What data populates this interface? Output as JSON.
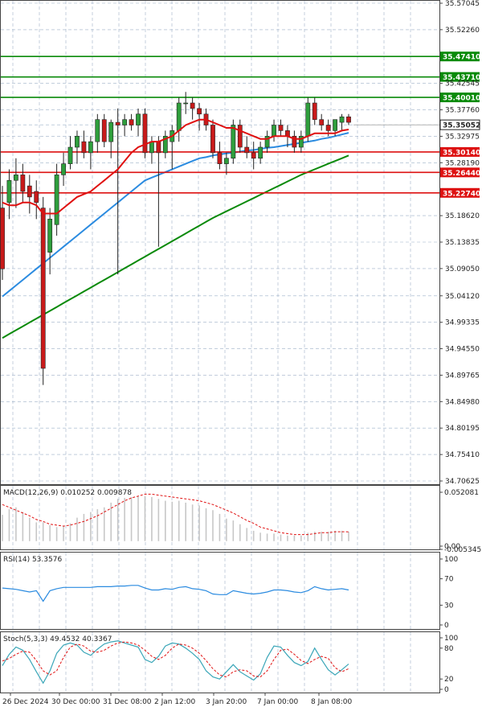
{
  "chart_data": {
    "type": "candlestick",
    "price_axis": {
      "ticks": [
        "35.57045",
        "35.52260",
        "35.47410",
        "35.43710",
        "35.42545",
        "35.40010",
        "35.37760",
        "35.35052",
        "35.32975",
        "35.30140",
        "35.28190",
        "35.26440",
        "35.22740",
        "35.18620",
        "35.13835",
        "35.09050",
        "35.04120",
        "34.99335",
        "34.94550",
        "34.89765",
        "34.84980",
        "34.80195",
        "34.75410",
        "34.70625"
      ]
    },
    "current_price": "35.35052",
    "levels": [
      {
        "label": "35.47410",
        "value": 35.4741,
        "color": "#0a8a0a"
      },
      {
        "label": "35.43710",
        "value": 35.4371,
        "color": "#0a8a0a"
      },
      {
        "label": "35.40010",
        "value": 35.4001,
        "color": "#0a8a0a"
      },
      {
        "label": "35.30140",
        "value": 35.3014,
        "color": "#dd1111"
      },
      {
        "label": "35.26440",
        "value": 35.2644,
        "color": "#dd1111"
      },
      {
        "label": "35.22740",
        "value": 35.2274,
        "color": "#dd1111"
      }
    ],
    "x_labels": [
      "26 Dec 2024",
      "30 Dec 00:00",
      "31 Dec 08:00",
      "2 Jan 12:00",
      "3 Jan 20:00",
      "7 Jan 00:00",
      "8 Jan 08:00"
    ],
    "candles": [
      {
        "o": 35.2,
        "h": 35.24,
        "l": 35.07,
        "c": 35.09
      },
      {
        "o": 35.21,
        "h": 35.27,
        "l": 35.18,
        "c": 35.25
      },
      {
        "o": 35.25,
        "h": 35.29,
        "l": 35.2,
        "c": 35.26
      },
      {
        "o": 35.26,
        "h": 35.28,
        "l": 35.21,
        "c": 35.23
      },
      {
        "o": 35.24,
        "h": 35.26,
        "l": 35.19,
        "c": 35.22
      },
      {
        "o": 35.23,
        "h": 35.25,
        "l": 35.18,
        "c": 35.21
      },
      {
        "o": 35.2,
        "h": 35.22,
        "l": 34.88,
        "c": 34.91
      },
      {
        "o": 35.12,
        "h": 35.2,
        "l": 35.08,
        "c": 35.18
      },
      {
        "o": 35.17,
        "h": 35.28,
        "l": 35.15,
        "c": 35.26
      },
      {
        "o": 35.26,
        "h": 35.3,
        "l": 35.24,
        "c": 35.28
      },
      {
        "o": 35.28,
        "h": 35.33,
        "l": 35.27,
        "c": 35.31
      },
      {
        "o": 35.31,
        "h": 35.34,
        "l": 35.28,
        "c": 35.33
      },
      {
        "o": 35.32,
        "h": 35.34,
        "l": 35.29,
        "c": 35.3
      },
      {
        "o": 35.3,
        "h": 35.33,
        "l": 35.27,
        "c": 35.32
      },
      {
        "o": 35.32,
        "h": 35.37,
        "l": 35.3,
        "c": 35.36
      },
      {
        "o": 35.36,
        "h": 35.37,
        "l": 35.31,
        "c": 35.32
      },
      {
        "o": 35.32,
        "h": 35.36,
        "l": 35.29,
        "c": 35.355
      },
      {
        "o": 35.355,
        "h": 35.38,
        "l": 35.08,
        "c": 35.35
      },
      {
        "o": 35.35,
        "h": 35.37,
        "l": 35.33,
        "c": 35.36
      },
      {
        "o": 35.36,
        "h": 35.37,
        "l": 35.34,
        "c": 35.35
      },
      {
        "o": 35.35,
        "h": 35.38,
        "l": 35.33,
        "c": 35.37
      },
      {
        "o": 35.37,
        "h": 35.38,
        "l": 35.29,
        "c": 35.3
      },
      {
        "o": 35.3,
        "h": 35.33,
        "l": 35.28,
        "c": 35.32
      },
      {
        "o": 35.32,
        "h": 35.33,
        "l": 35.13,
        "c": 35.3
      },
      {
        "o": 35.3,
        "h": 35.34,
        "l": 35.29,
        "c": 35.33
      },
      {
        "o": 35.32,
        "h": 35.35,
        "l": 35.27,
        "c": 35.34
      },
      {
        "o": 35.34,
        "h": 35.4,
        "l": 35.32,
        "c": 35.39
      },
      {
        "o": 35.39,
        "h": 35.41,
        "l": 35.37,
        "c": 35.39
      },
      {
        "o": 35.39,
        "h": 35.4,
        "l": 35.36,
        "c": 35.38
      },
      {
        "o": 35.38,
        "h": 35.39,
        "l": 35.34,
        "c": 35.37
      },
      {
        "o": 35.37,
        "h": 35.38,
        "l": 35.34,
        "c": 35.35
      },
      {
        "o": 35.35,
        "h": 35.36,
        "l": 35.29,
        "c": 35.3
      },
      {
        "o": 35.3,
        "h": 35.32,
        "l": 35.27,
        "c": 35.28
      },
      {
        "o": 35.28,
        "h": 35.3,
        "l": 35.26,
        "c": 35.29
      },
      {
        "o": 35.29,
        "h": 35.36,
        "l": 35.28,
        "c": 35.35
      },
      {
        "o": 35.35,
        "h": 35.36,
        "l": 35.3,
        "c": 35.31
      },
      {
        "o": 35.31,
        "h": 35.33,
        "l": 35.29,
        "c": 35.3
      },
      {
        "o": 35.3,
        "h": 35.32,
        "l": 35.27,
        "c": 35.29
      },
      {
        "o": 35.29,
        "h": 35.32,
        "l": 35.28,
        "c": 35.31
      },
      {
        "o": 35.31,
        "h": 35.34,
        "l": 35.3,
        "c": 35.33
      },
      {
        "o": 35.33,
        "h": 35.36,
        "l": 35.32,
        "c": 35.35
      },
      {
        "o": 35.35,
        "h": 35.36,
        "l": 35.33,
        "c": 35.34
      },
      {
        "o": 35.34,
        "h": 35.35,
        "l": 35.31,
        "c": 35.33
      },
      {
        "o": 35.33,
        "h": 35.34,
        "l": 35.3,
        "c": 35.31
      },
      {
        "o": 35.31,
        "h": 35.34,
        "l": 35.3,
        "c": 35.33
      },
      {
        "o": 35.33,
        "h": 35.4,
        "l": 35.32,
        "c": 35.39
      },
      {
        "o": 35.39,
        "h": 35.4,
        "l": 35.35,
        "c": 35.36
      },
      {
        "o": 35.36,
        "h": 35.37,
        "l": 35.34,
        "c": 35.35
      },
      {
        "o": 35.35,
        "h": 35.36,
        "l": 35.33,
        "c": 35.34
      },
      {
        "o": 35.34,
        "h": 35.36,
        "l": 35.33,
        "c": 35.36
      },
      {
        "o": 35.355,
        "h": 35.37,
        "l": 35.34,
        "c": 35.365
      },
      {
        "o": 35.365,
        "h": 35.37,
        "l": 35.35,
        "c": 35.355
      }
    ],
    "ma_fast": {
      "color": "#e01010",
      "values": [
        35.21,
        35.205,
        35.205,
        35.21,
        35.21,
        35.205,
        35.19,
        35.19,
        35.19,
        35.2,
        35.21,
        35.22,
        35.225,
        35.23,
        35.24,
        35.25,
        35.26,
        35.27,
        35.285,
        35.3,
        35.31,
        35.315,
        35.32,
        35.32,
        35.325,
        35.33,
        35.34,
        35.35,
        35.355,
        35.36,
        35.36,
        35.355,
        35.35,
        35.345,
        35.345,
        35.34,
        35.335,
        35.33,
        35.325,
        35.325,
        35.33,
        35.33,
        35.33,
        35.325,
        35.325,
        35.33,
        35.335,
        35.335,
        35.335,
        35.335,
        35.34,
        35.342
      ]
    },
    "ma_mid": {
      "color": "#2b8be0",
      "values": [
        35.04,
        35.05,
        35.06,
        35.07,
        35.08,
        35.09,
        35.1,
        35.11,
        35.12,
        35.13,
        35.14,
        35.15,
        35.16,
        35.17,
        35.18,
        35.19,
        35.2,
        35.21,
        35.22,
        35.23,
        35.24,
        35.25,
        35.255,
        35.26,
        35.265,
        35.27,
        35.275,
        35.28,
        35.285,
        35.29,
        35.292,
        35.295,
        35.297,
        35.299,
        35.3,
        35.302,
        35.304,
        35.305,
        35.307,
        35.309,
        35.31,
        35.312,
        35.314,
        35.316,
        35.318,
        35.32,
        35.322,
        35.325,
        35.327,
        35.33,
        35.333,
        35.336
      ]
    },
    "ma_slow": {
      "color": "#0a8a0a",
      "values": [
        34.965,
        34.972,
        34.979,
        34.986,
        34.993,
        35.0,
        35.007,
        35.014,
        35.021,
        35.028,
        35.035,
        35.042,
        35.049,
        35.056,
        35.063,
        35.07,
        35.077,
        35.084,
        35.091,
        35.098,
        35.105,
        35.112,
        35.119,
        35.126,
        35.133,
        35.14,
        35.147,
        35.154,
        35.161,
        35.168,
        35.175,
        35.182,
        35.188,
        35.194,
        35.2,
        35.206,
        35.212,
        35.218,
        35.224,
        35.23,
        35.236,
        35.242,
        35.248,
        35.254,
        35.26,
        35.265,
        35.27,
        35.275,
        35.28,
        35.285,
        35.29,
        35.295
      ]
    },
    "macd": {
      "title": "MACD(12,26,9) 0.010252 0.009878",
      "axis_ticks": [
        "0.052081",
        "0.00",
        "-0.005345"
      ],
      "hist": [
        0.028,
        0.034,
        0.036,
        0.031,
        0.025,
        0.02,
        0.02,
        0.017,
        0.015,
        0.016,
        0.019,
        0.025,
        0.029,
        0.031,
        0.034,
        0.036,
        0.041,
        0.045,
        0.046,
        0.047,
        0.048,
        0.048,
        0.047,
        0.045,
        0.043,
        0.042,
        0.043,
        0.041,
        0.039,
        0.038,
        0.035,
        0.033,
        0.029,
        0.024,
        0.022,
        0.018,
        0.014,
        0.011,
        0.009,
        0.008,
        0.008,
        0.007,
        0.006,
        0.006,
        0.006,
        0.009,
        0.01,
        0.01,
        0.01,
        0.011,
        0.011,
        0.01
      ],
      "signal": [
        0.039,
        0.036,
        0.033,
        0.03,
        0.027,
        0.023,
        0.021,
        0.018,
        0.017,
        0.016,
        0.017,
        0.019,
        0.021,
        0.024,
        0.027,
        0.031,
        0.035,
        0.039,
        0.043,
        0.046,
        0.048,
        0.05,
        0.05,
        0.049,
        0.048,
        0.047,
        0.046,
        0.045,
        0.044,
        0.043,
        0.041,
        0.039,
        0.036,
        0.033,
        0.03,
        0.026,
        0.022,
        0.019,
        0.015,
        0.013,
        0.011,
        0.009,
        0.008,
        0.007,
        0.007,
        0.007,
        0.008,
        0.009,
        0.009,
        0.01,
        0.01,
        0.0099
      ]
    },
    "rsi": {
      "title": "RSI(14) 53.3576",
      "axis_ticks": [
        "100",
        "70",
        "30",
        "0"
      ],
      "values": [
        56,
        55,
        54,
        52,
        50,
        52,
        36,
        52,
        55,
        57,
        57,
        57,
        57,
        57,
        58,
        58,
        58,
        59,
        59,
        60,
        60,
        56,
        53,
        53,
        55,
        54,
        57,
        58,
        55,
        54,
        52,
        47,
        46,
        46,
        52,
        50,
        48,
        47,
        48,
        50,
        53,
        53,
        52,
        50,
        49,
        52,
        58,
        55,
        53,
        54,
        55,
        53
      ]
    },
    "stoch": {
      "title": "Stoch(5,3,3) 49.4532 40.3367",
      "axis_ticks": [
        "100",
        "80",
        "20",
        "0"
      ],
      "k": [
        46,
        68,
        82,
        76,
        58,
        34,
        12,
        36,
        70,
        86,
        90,
        86,
        72,
        66,
        78,
        88,
        92,
        94,
        90,
        86,
        82,
        58,
        52,
        64,
        84,
        90,
        88,
        80,
        70,
        58,
        36,
        24,
        20,
        34,
        48,
        34,
        26,
        18,
        30,
        62,
        84,
        82,
        66,
        52,
        46,
        54,
        80,
        58,
        38,
        28,
        38,
        49
      ],
      "d": [
        55,
        60,
        68,
        74,
        72,
        56,
        36,
        28,
        36,
        62,
        82,
        88,
        84,
        74,
        72,
        76,
        84,
        90,
        92,
        90,
        86,
        76,
        64,
        58,
        66,
        80,
        88,
        86,
        80,
        70,
        56,
        40,
        28,
        24,
        34,
        38,
        36,
        26,
        24,
        36,
        58,
        76,
        78,
        68,
        56,
        50,
        58,
        64,
        60,
        42,
        34,
        40
      ]
    }
  }
}
